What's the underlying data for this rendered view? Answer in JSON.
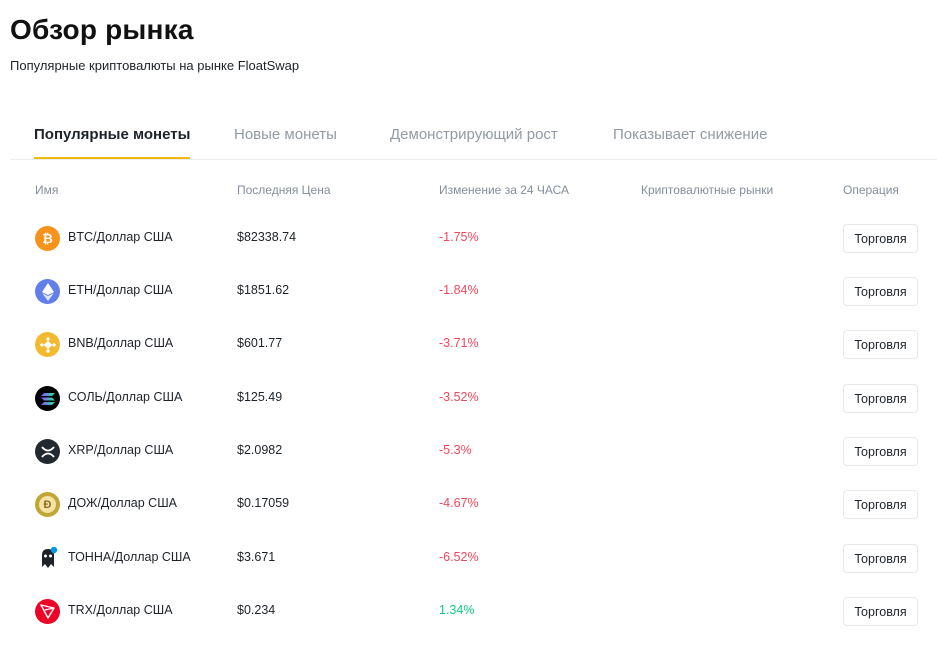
{
  "page": {
    "title": "Обзор рынка",
    "subtitle": "Популярные криптовалюты на рынке FloatSwap"
  },
  "tabs": [
    {
      "label": "Популярные монеты",
      "active": true
    },
    {
      "label": "Новые монеты",
      "active": false
    },
    {
      "label": "Демонстрирующий рост",
      "active": false
    },
    {
      "label": "Показывает снижение",
      "active": false
    }
  ],
  "columns": [
    "Имя",
    "Последняя Цена",
    "Изменение за 24 ЧАСА",
    "Криптовалютные рынки",
    "Операция"
  ],
  "colors": {
    "accent": "#f0b90b",
    "down": "#f6465d",
    "up": "#0ecb81"
  },
  "rows": [
    {
      "icon": "bitcoin-icon",
      "pair": "BTC/Доллар США",
      "price": "$82338.74",
      "change": "-1.75%",
      "direction": "down",
      "action": "Торговля"
    },
    {
      "icon": "ethereum-icon",
      "pair": "ETH/Доллар США",
      "price": "$1851.62",
      "change": "-1.84%",
      "direction": "down",
      "action": "Торговля"
    },
    {
      "icon": "bnb-icon",
      "pair": "BNB/Доллар США",
      "price": "$601.77",
      "change": "-3.71%",
      "direction": "down",
      "action": "Торговля"
    },
    {
      "icon": "solana-icon",
      "pair": "СОЛЬ/Доллар США",
      "price": "$125.49",
      "change": "-3.52%",
      "direction": "down",
      "action": "Торговля"
    },
    {
      "icon": "xrp-icon",
      "pair": "XRP/Доллар США",
      "price": "$2.0982",
      "change": "-5.3%",
      "direction": "down",
      "action": "Торговля"
    },
    {
      "icon": "dogecoin-icon",
      "pair": "ДОЖ/Доллар США",
      "price": "$0.17059",
      "change": "-4.67%",
      "direction": "down",
      "action": "Торговля"
    },
    {
      "icon": "toncoin-icon",
      "pair": "ТОННА/Доллар США",
      "price": "$3.671",
      "change": "-6.52%",
      "direction": "down",
      "action": "Торговля"
    },
    {
      "icon": "tron-icon",
      "pair": "TRX/Доллар США",
      "price": "$0.234",
      "change": "1.34%",
      "direction": "up",
      "action": "Торговля"
    }
  ]
}
